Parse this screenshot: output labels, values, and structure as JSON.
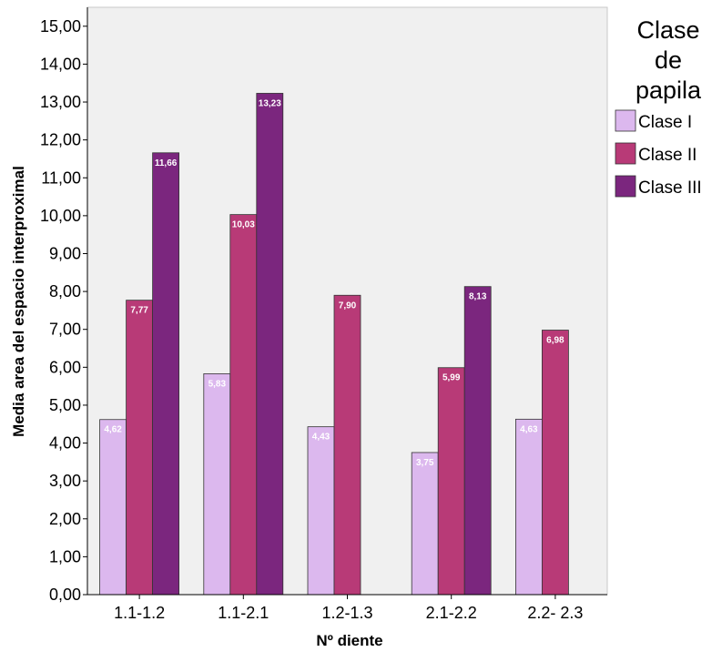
{
  "chart_data": {
    "type": "bar",
    "xlabel": "Nº diente",
    "ylabel": "Media area del espacio interproximal",
    "categories": [
      "1.1-1.2",
      "1.1-2.1",
      "1.2-1.3",
      "2.1-2.2",
      "2.2- 2.3"
    ],
    "series": [
      {
        "name": "Clase I",
        "color": "#dcb8ee",
        "values": [
          4.62,
          5.83,
          4.43,
          3.75,
          4.63
        ],
        "labels": [
          "4,62",
          "5,83",
          "4,43",
          "3,75",
          "4,63"
        ]
      },
      {
        "name": "Clase II",
        "color": "#b83a77",
        "values": [
          7.77,
          10.03,
          7.9,
          5.99,
          6.98
        ],
        "labels": [
          "7,77",
          "10,03",
          "7,90",
          "5,99",
          "6,98"
        ]
      },
      {
        "name": "Clase III",
        "color": "#7b267e",
        "values": [
          11.66,
          13.23,
          null,
          8.13,
          null
        ],
        "labels": [
          "11,66",
          "13,23",
          "",
          "8,13",
          ""
        ]
      }
    ],
    "ylim": [
      0,
      15.5
    ],
    "yticks": [
      0,
      1,
      2,
      3,
      4,
      5,
      6,
      7,
      8,
      9,
      10,
      11,
      12,
      13,
      14,
      15
    ],
    "ytick_labels": [
      "0,00",
      "1,00",
      "2,00",
      "3,00",
      "4,00",
      "5,00",
      "6,00",
      "7,00",
      "8,00",
      "9,00",
      "10,00",
      "11,00",
      "12,00",
      "13,00",
      "14,00",
      "15,00"
    ],
    "grid": false,
    "background": "#f0f0f0",
    "legend": {
      "title_lines": [
        "Clase",
        "de",
        "papila"
      ],
      "placement": "right"
    }
  }
}
